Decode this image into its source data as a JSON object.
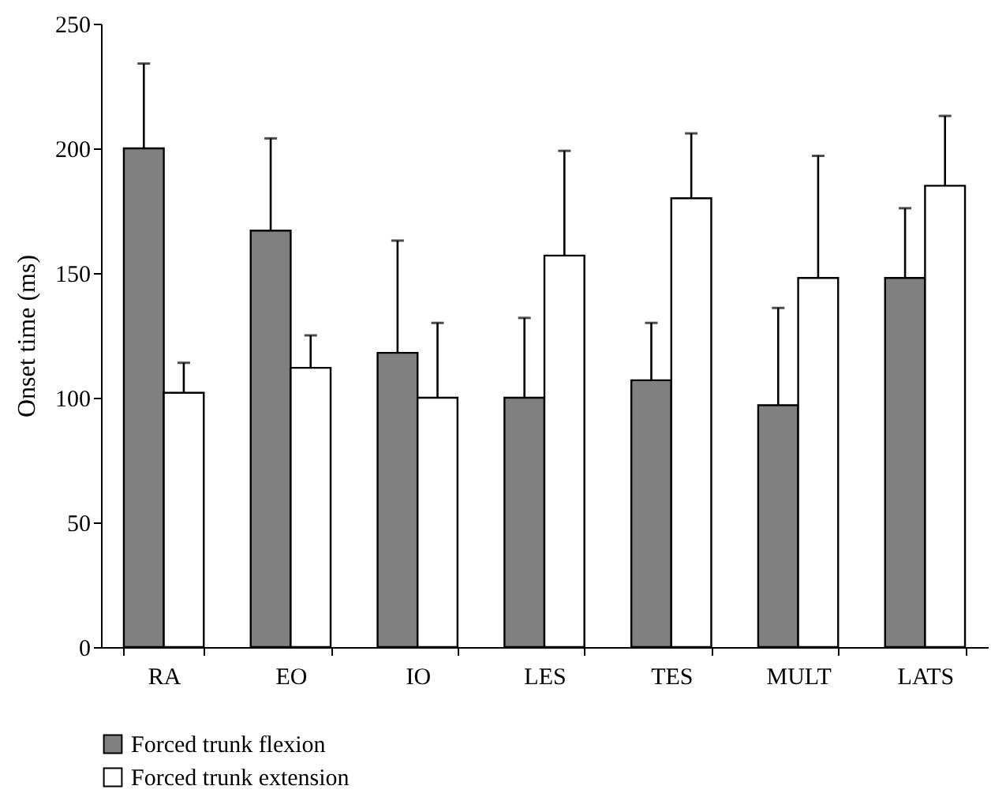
{
  "chart_data": {
    "type": "bar",
    "ylabel": "Onset time (ms)",
    "categories": [
      "RA",
      "EO",
      "IO",
      "LES",
      "TES",
      "MULT",
      "LATS"
    ],
    "series": [
      {
        "name": "Forced trunk flexion",
        "color": "#808080",
        "values": [
          200,
          167,
          118,
          100,
          107,
          97,
          148
        ],
        "errors": [
          [
            200,
            234
          ],
          [
            167,
            204
          ],
          [
            118,
            163
          ],
          [
            100,
            132
          ],
          [
            107,
            130
          ],
          [
            97,
            136
          ],
          [
            148,
            176
          ]
        ]
      },
      {
        "name": "Forced trunk extension",
        "color": "#ffffff",
        "values": [
          102,
          112,
          100,
          157,
          180,
          148,
          185
        ],
        "errors": [
          [
            102,
            114
          ],
          [
            112,
            125
          ],
          [
            100,
            130
          ],
          [
            157,
            199
          ],
          [
            180,
            206
          ],
          [
            148,
            197
          ],
          [
            185,
            213
          ]
        ]
      }
    ],
    "ylim": [
      0,
      250
    ],
    "yticks": [
      0,
      50,
      100,
      150,
      200,
      250
    ],
    "grid": false,
    "legend": "bottom left"
  }
}
